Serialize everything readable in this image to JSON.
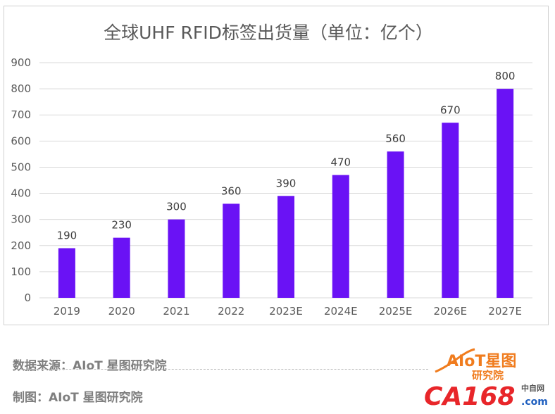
{
  "chart_data": {
    "type": "bar",
    "title": "全球UHF RFID标签出货量（单位：亿个）",
    "categories": [
      "2019",
      "2020",
      "2021",
      "2022",
      "2023E",
      "2024E",
      "2025E",
      "2026E",
      "2027E"
    ],
    "values": [
      190,
      230,
      300,
      360,
      390,
      470,
      560,
      670,
      800
    ],
    "ylim": [
      0,
      900
    ],
    "yticks": [
      0,
      100,
      200,
      300,
      400,
      500,
      600,
      700,
      800,
      900
    ],
    "grid": true,
    "data_labels": true,
    "bar_color": "#6a12f5"
  },
  "footer": {
    "source": "数据来源：AIoT 星图研究院",
    "maker": "制图：AIoT 星图研究院"
  },
  "logos": {
    "aiot_brand": "AIoT星图",
    "aiot_sub": "研究院",
    "ca168_brand": "CA168",
    "ca168_domain": ".com",
    "ca168_tag": "中自网",
    "aiot_color": "#f07c1e",
    "ca168_color": "#e8262a"
  }
}
